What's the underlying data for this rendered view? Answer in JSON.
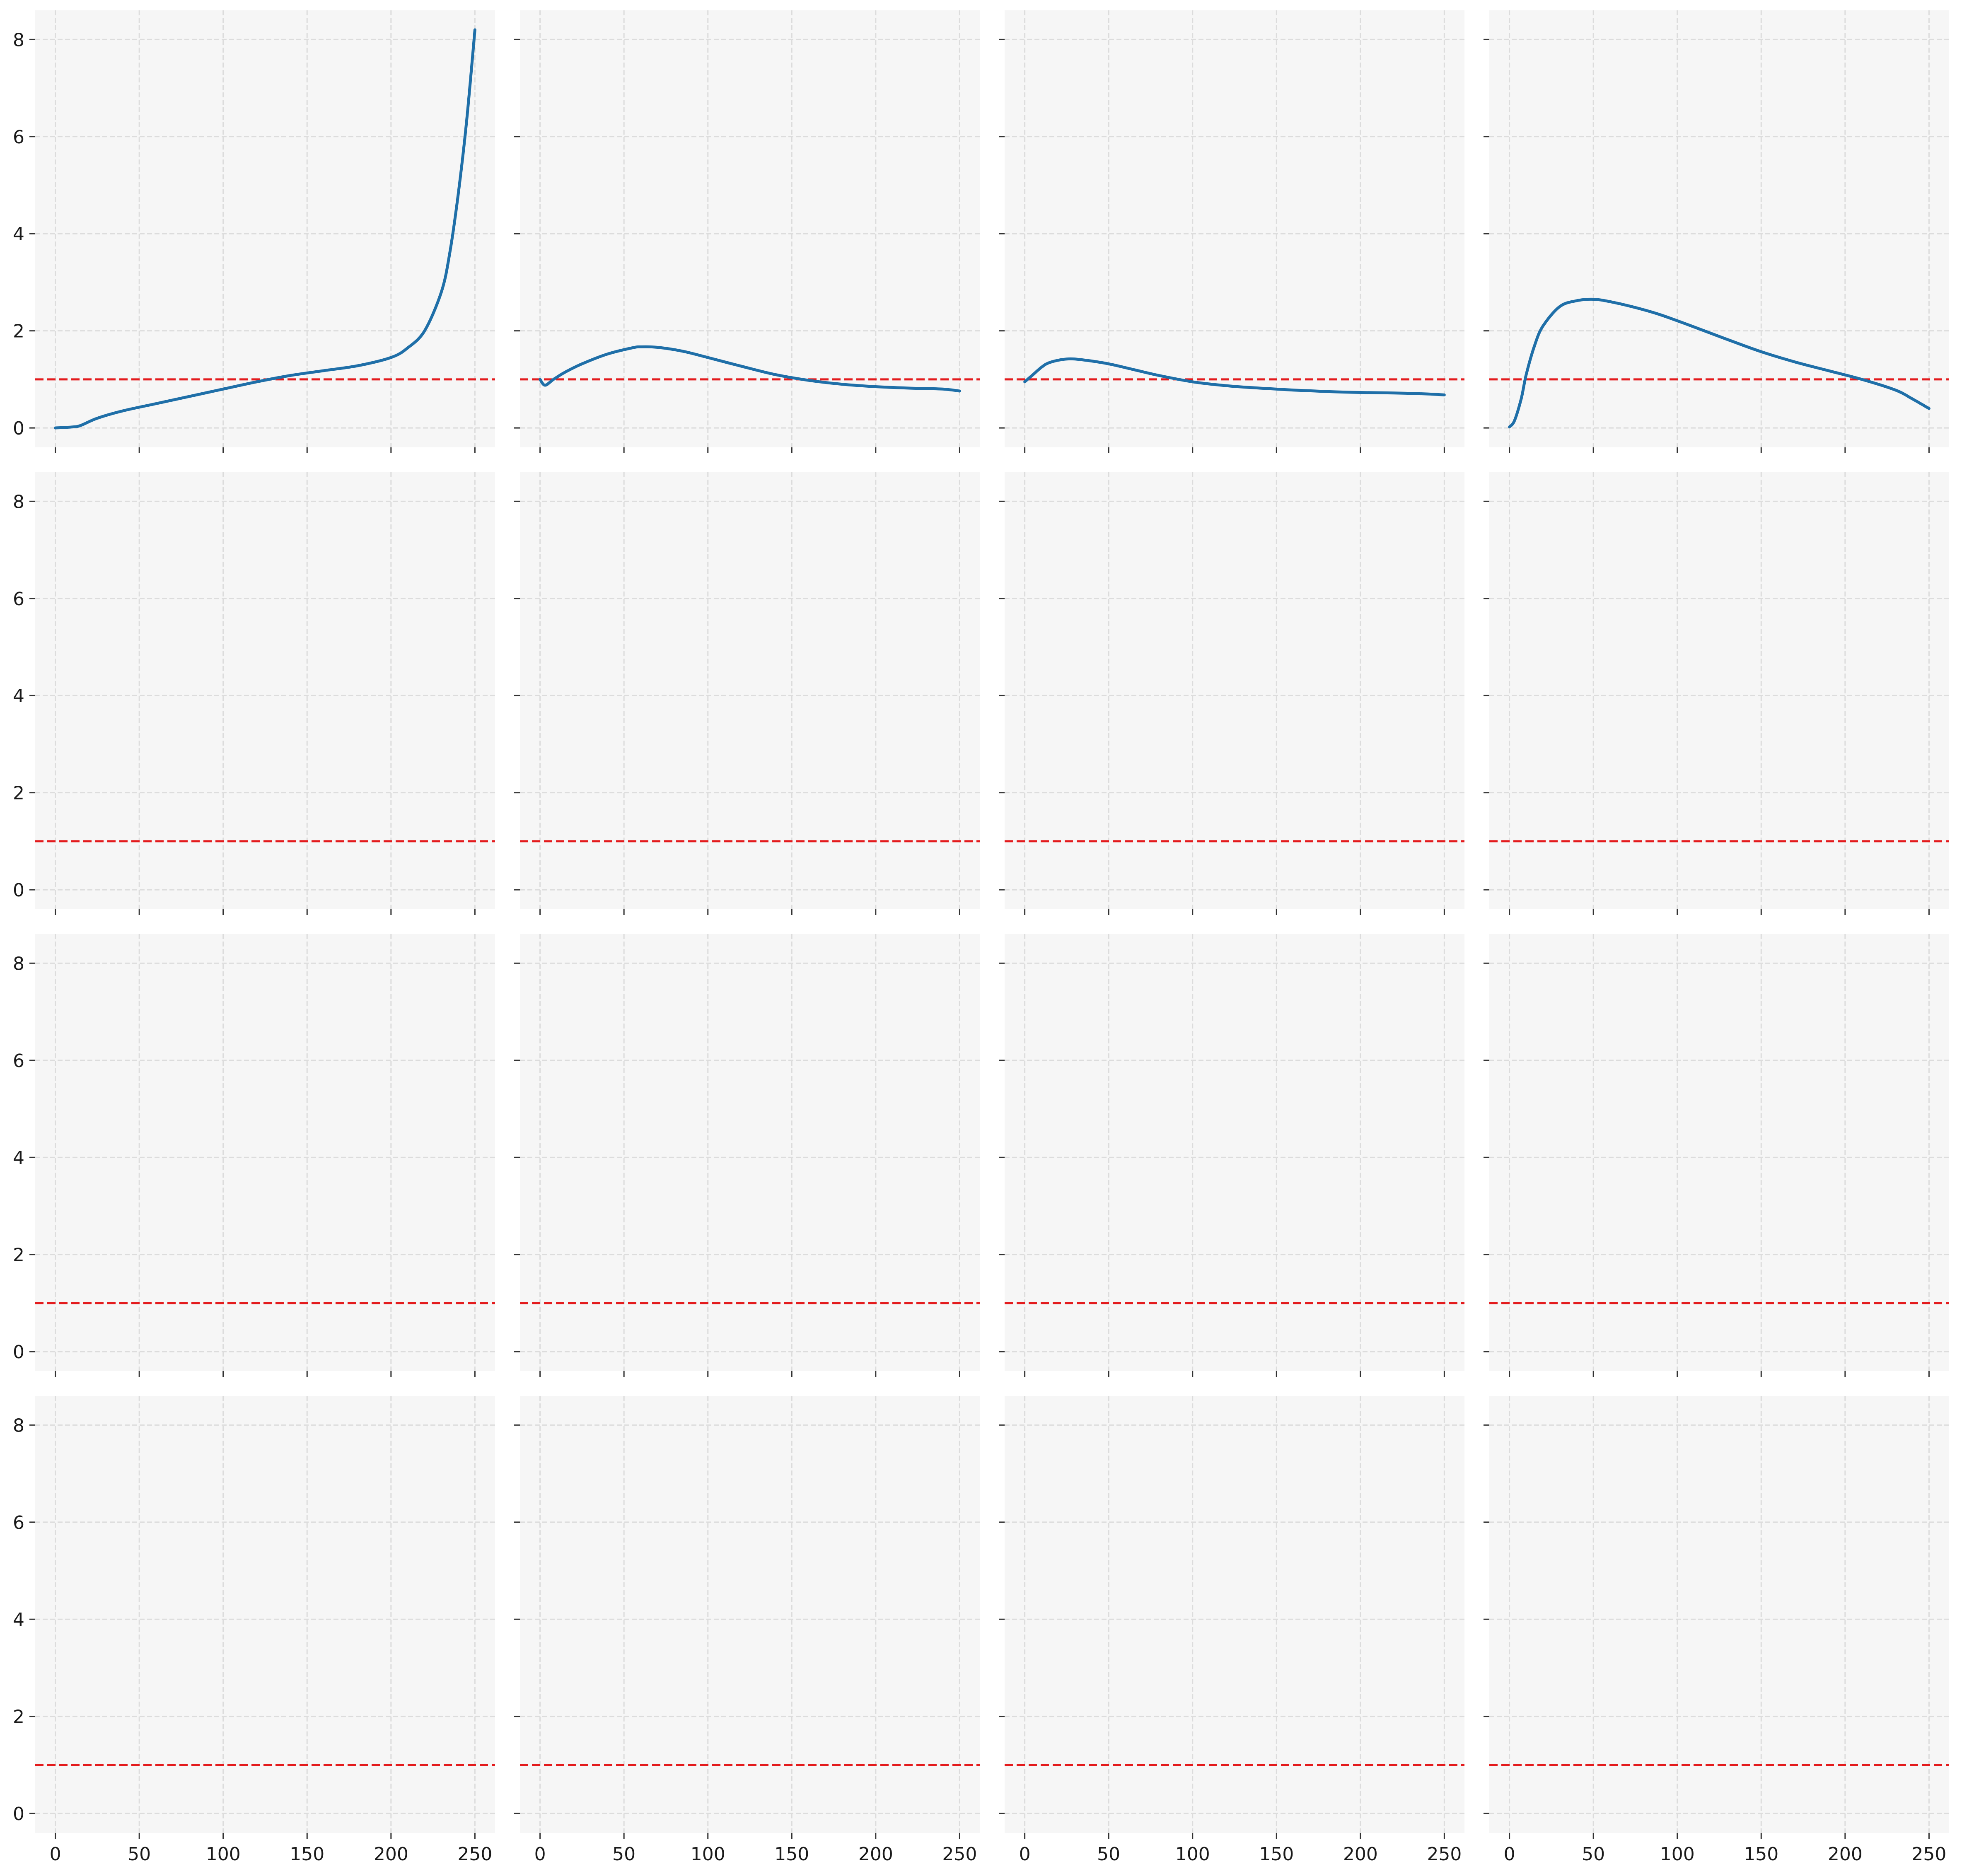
{
  "chart_data": {
    "type": "line",
    "layout": {
      "rows": 4,
      "cols": 4,
      "sharex": true,
      "sharey": true
    },
    "xlim": [
      -12,
      262
    ],
    "ylim": [
      -0.4,
      8.6
    ],
    "xticks": [
      0,
      50,
      100,
      150,
      200,
      250
    ],
    "yticks": [
      0,
      2,
      4,
      6,
      8
    ],
    "grid": true,
    "reference_line": {
      "y": 1,
      "style": "dashed",
      "color": "#e31a1c"
    },
    "series_color": "#1f6fa8",
    "panel_background": "#f6f6f6",
    "panels": [
      {
        "x": [
          0,
          10,
          15,
          25,
          40,
          60,
          80,
          100,
          120,
          140,
          160,
          180,
          200,
          210,
          220,
          230,
          235,
          240,
          245,
          250
        ],
        "y": [
          0,
          0.02,
          0.05,
          0.2,
          0.35,
          0.5,
          0.65,
          0.8,
          0.95,
          1.08,
          1.18,
          1.28,
          1.45,
          1.65,
          2.0,
          2.8,
          3.6,
          4.8,
          6.3,
          8.2
        ]
      },
      {
        "x": [
          0,
          3,
          8,
          15,
          25,
          40,
          55,
          60,
          70,
          85,
          100,
          120,
          140,
          160,
          180,
          200,
          220,
          240,
          250
        ],
        "y": [
          1.0,
          0.88,
          1.0,
          1.15,
          1.32,
          1.52,
          1.65,
          1.67,
          1.66,
          1.58,
          1.45,
          1.27,
          1.1,
          0.98,
          0.9,
          0.85,
          0.82,
          0.8,
          0.76
        ]
      },
      {
        "x": [
          0,
          5,
          10,
          15,
          25,
          35,
          50,
          65,
          80,
          100,
          120,
          140,
          160,
          180,
          200,
          220,
          240,
          250
        ],
        "y": [
          0.95,
          1.1,
          1.25,
          1.35,
          1.42,
          1.4,
          1.32,
          1.2,
          1.08,
          0.95,
          0.87,
          0.82,
          0.78,
          0.75,
          0.73,
          0.72,
          0.7,
          0.68
        ]
      },
      {
        "x": [
          0,
          3,
          7,
          10,
          15,
          20,
          30,
          40,
          50,
          60,
          75,
          90,
          110,
          130,
          150,
          170,
          190,
          210,
          230,
          240,
          250
        ],
        "y": [
          0.02,
          0.15,
          0.6,
          1.1,
          1.7,
          2.1,
          2.5,
          2.62,
          2.65,
          2.6,
          2.48,
          2.33,
          2.08,
          1.82,
          1.57,
          1.36,
          1.18,
          1.0,
          0.78,
          0.6,
          0.4
        ]
      }
    ]
  }
}
